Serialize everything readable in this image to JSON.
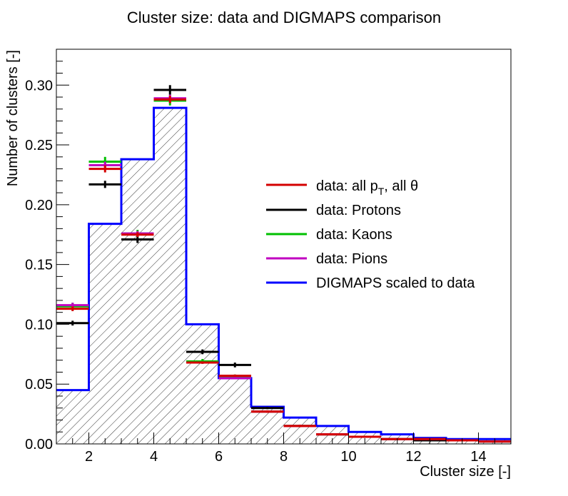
{
  "chart_data": {
    "type": "histogram",
    "title": "Cluster size: data and DIGMAPS comparison",
    "xlabel": "Cluster size [-]",
    "ylabel": "Number of clusters [-]",
    "xlim": [
      1,
      15
    ],
    "ylim": [
      0,
      0.33
    ],
    "x_ticks": [
      2,
      4,
      6,
      8,
      10,
      12,
      14
    ],
    "y_ticks": [
      0.0,
      0.05,
      0.1,
      0.15,
      0.2,
      0.25,
      0.3
    ],
    "y_tick_labels": [
      "0.00",
      "0.05",
      "0.10",
      "0.15",
      "0.20",
      "0.25",
      "0.30"
    ],
    "legend_position": "center-right",
    "grid": false,
    "series": [
      {
        "name": "data: all p_T, all θ",
        "color": "#d40000",
        "style": "points_with_errors",
        "bins": [
          {
            "x0": 1,
            "x1": 2,
            "y": 0.113,
            "err": 0.002
          },
          {
            "x0": 2,
            "x1": 3,
            "y": 0.23,
            "err": 0.003
          },
          {
            "x0": 3,
            "x1": 4,
            "y": 0.175,
            "err": 0.002
          },
          {
            "x0": 4,
            "x1": 5,
            "y": 0.288,
            "err": 0.003
          },
          {
            "x0": 5,
            "x1": 6,
            "y": 0.068,
            "err": 0.001
          },
          {
            "x0": 6,
            "x1": 7,
            "y": 0.057,
            "err": 0.001
          },
          {
            "x0": 7,
            "x1": 8,
            "y": 0.027,
            "err": 0.001
          },
          {
            "x0": 8,
            "x1": 9,
            "y": 0.015,
            "err": 0.001
          },
          {
            "x0": 9,
            "x1": 10,
            "y": 0.008,
            "err": 0.0005
          },
          {
            "x0": 10,
            "x1": 11,
            "y": 0.006,
            "err": 0.0005
          },
          {
            "x0": 11,
            "x1": 12,
            "y": 0.004,
            "err": 0.0005
          },
          {
            "x0": 12,
            "x1": 13,
            "y": 0.004,
            "err": 0.0005
          },
          {
            "x0": 13,
            "x1": 14,
            "y": 0.003,
            "err": 0.0005
          },
          {
            "x0": 14,
            "x1": 15,
            "y": 0.002,
            "err": 0.0005
          }
        ]
      },
      {
        "name": "data: Protons",
        "color": "#000000",
        "style": "points_with_errors",
        "bins": [
          {
            "x0": 1,
            "x1": 2,
            "y": 0.101,
            "err": 0.002
          },
          {
            "x0": 2,
            "x1": 3,
            "y": 0.217,
            "err": 0.003
          },
          {
            "x0": 3,
            "x1": 4,
            "y": 0.171,
            "err": 0.003
          },
          {
            "x0": 4,
            "x1": 5,
            "y": 0.296,
            "err": 0.004
          },
          {
            "x0": 5,
            "x1": 6,
            "y": 0.077,
            "err": 0.002
          },
          {
            "x0": 6,
            "x1": 7,
            "y": 0.066,
            "err": 0.002
          },
          {
            "x0": 7,
            "x1": 8,
            "y": 0.03,
            "err": 0.001
          },
          {
            "x0": 8,
            "x1": 9,
            "y": 0.015,
            "err": 0.001
          },
          {
            "x0": 9,
            "x1": 10,
            "y": 0.008,
            "err": 0.0005
          },
          {
            "x0": 10,
            "x1": 11,
            "y": 0.006,
            "err": 0.0005
          },
          {
            "x0": 11,
            "x1": 12,
            "y": 0.004,
            "err": 0.0005
          },
          {
            "x0": 12,
            "x1": 13,
            "y": 0.003,
            "err": 0.0005
          },
          {
            "x0": 13,
            "x1": 14,
            "y": 0.003,
            "err": 0.0005
          },
          {
            "x0": 14,
            "x1": 15,
            "y": 0.002,
            "err": 0.0005
          }
        ]
      },
      {
        "name": "data: Kaons",
        "color": "#00c000",
        "style": "points_with_errors",
        "bins": [
          {
            "x0": 1,
            "x1": 2,
            "y": 0.115,
            "err": 0.003
          },
          {
            "x0": 2,
            "x1": 3,
            "y": 0.236,
            "err": 0.004
          },
          {
            "x0": 3,
            "x1": 4,
            "y": 0.176,
            "err": 0.003
          },
          {
            "x0": 4,
            "x1": 5,
            "y": 0.287,
            "err": 0.004
          },
          {
            "x0": 5,
            "x1": 6,
            "y": 0.069,
            "err": 0.002
          },
          {
            "x0": 6,
            "x1": 7,
            "y": 0.056,
            "err": 0.002
          },
          {
            "x0": 7,
            "x1": 8,
            "y": 0.027,
            "err": 0.001
          },
          {
            "x0": 8,
            "x1": 9,
            "y": 0.015,
            "err": 0.001
          },
          {
            "x0": 9,
            "x1": 10,
            "y": 0.008,
            "err": 0.0005
          },
          {
            "x0": 10,
            "x1": 11,
            "y": 0.006,
            "err": 0.0005
          },
          {
            "x0": 11,
            "x1": 12,
            "y": 0.004,
            "err": 0.0005
          },
          {
            "x0": 12,
            "x1": 13,
            "y": 0.004,
            "err": 0.0005
          },
          {
            "x0": 13,
            "x1": 14,
            "y": 0.003,
            "err": 0.0005
          },
          {
            "x0": 14,
            "x1": 15,
            "y": 0.002,
            "err": 0.0005
          }
        ]
      },
      {
        "name": "data: Pions",
        "color": "#c000c0",
        "style": "points_with_errors",
        "bins": [
          {
            "x0": 1,
            "x1": 2,
            "y": 0.116,
            "err": 0.002
          },
          {
            "x0": 2,
            "x1": 3,
            "y": 0.233,
            "err": 0.003
          },
          {
            "x0": 3,
            "x1": 4,
            "y": 0.176,
            "err": 0.002
          },
          {
            "x0": 4,
            "x1": 5,
            "y": 0.289,
            "err": 0.003
          },
          {
            "x0": 5,
            "x1": 6,
            "y": 0.068,
            "err": 0.001
          },
          {
            "x0": 6,
            "x1": 7,
            "y": 0.055,
            "err": 0.001
          },
          {
            "x0": 7,
            "x1": 8,
            "y": 0.027,
            "err": 0.001
          },
          {
            "x0": 8,
            "x1": 9,
            "y": 0.015,
            "err": 0.001
          },
          {
            "x0": 9,
            "x1": 10,
            "y": 0.008,
            "err": 0.0005
          },
          {
            "x0": 10,
            "x1": 11,
            "y": 0.006,
            "err": 0.0005
          },
          {
            "x0": 11,
            "x1": 12,
            "y": 0.004,
            "err": 0.0005
          },
          {
            "x0": 12,
            "x1": 13,
            "y": 0.004,
            "err": 0.0005
          },
          {
            "x0": 13,
            "x1": 14,
            "y": 0.003,
            "err": 0.0005
          },
          {
            "x0": 14,
            "x1": 15,
            "y": 0.002,
            "err": 0.0005
          }
        ]
      },
      {
        "name": "DIGMAPS scaled to data",
        "color": "#0000ff",
        "style": "step_hatched",
        "bins": [
          {
            "x0": 1,
            "x1": 2,
            "y": 0.045
          },
          {
            "x0": 2,
            "x1": 3,
            "y": 0.184
          },
          {
            "x0": 3,
            "x1": 4,
            "y": 0.238
          },
          {
            "x0": 4,
            "x1": 5,
            "y": 0.281
          },
          {
            "x0": 5,
            "x1": 6,
            "y": 0.1
          },
          {
            "x0": 6,
            "x1": 7,
            "y": 0.055
          },
          {
            "x0": 7,
            "x1": 8,
            "y": 0.031
          },
          {
            "x0": 8,
            "x1": 9,
            "y": 0.022
          },
          {
            "x0": 9,
            "x1": 10,
            "y": 0.015
          },
          {
            "x0": 10,
            "x1": 11,
            "y": 0.01
          },
          {
            "x0": 11,
            "x1": 12,
            "y": 0.008
          },
          {
            "x0": 12,
            "x1": 13,
            "y": 0.005
          },
          {
            "x0": 13,
            "x1": 14,
            "y": 0.004
          },
          {
            "x0": 14,
            "x1": 15,
            "y": 0.004
          }
        ]
      }
    ]
  },
  "legend": {
    "all_prefix": "data: all p",
    "all_sub": "T",
    "all_suffix": ", all θ",
    "protons": "data: Protons",
    "kaons": "data: Kaons",
    "pions": "data: Pions",
    "digmaps": "DIGMAPS scaled to data"
  }
}
